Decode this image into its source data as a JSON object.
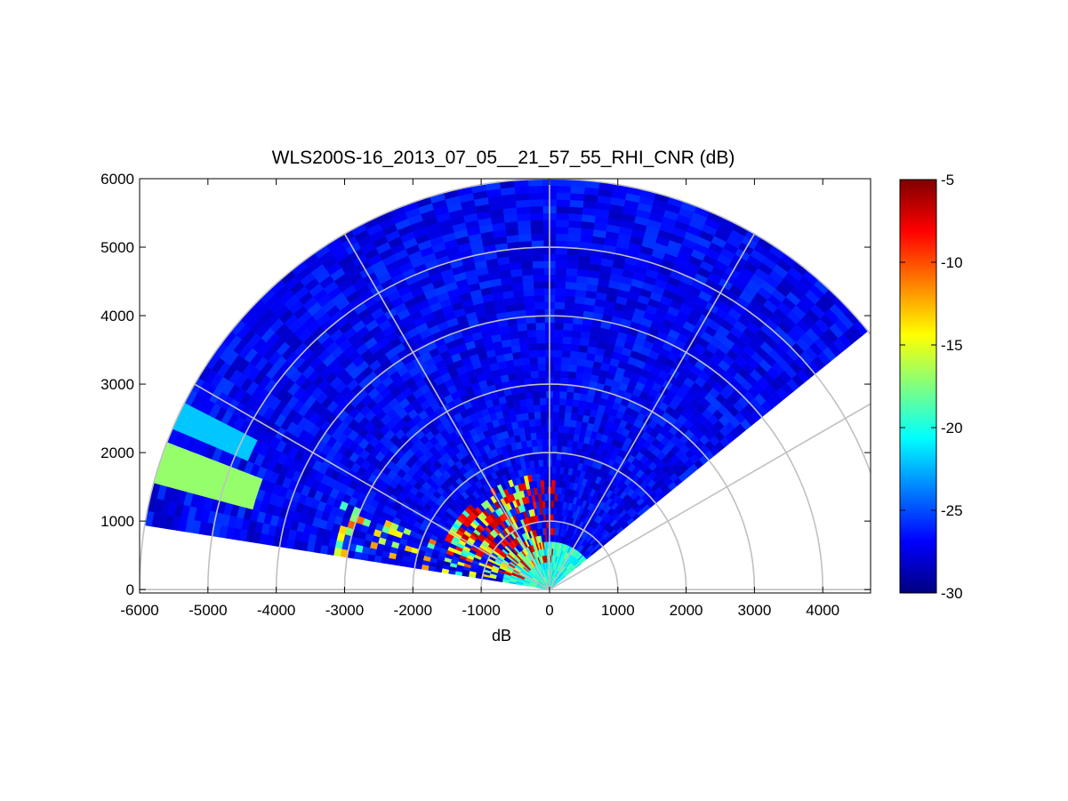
{
  "chart_data": {
    "type": "heatmap",
    "subtype": "polar RHI sector scan",
    "title": "WLS200S-16_2013_07_05__21_57_55_RHI_CNR (dB)",
    "xlabel": "dB",
    "ylabel": "",
    "xlim": [
      -6000,
      4700
    ],
    "ylim": [
      -50,
      6000
    ],
    "x_ticks": [
      -6000,
      -5000,
      -4000,
      -3000,
      -2000,
      -1000,
      0,
      1000,
      2000,
      3000,
      4000
    ],
    "y_ticks": [
      0,
      1000,
      2000,
      3000,
      4000,
      5000,
      6000
    ],
    "range_rings": [
      1000,
      2000,
      3000,
      4000,
      5000,
      6000
    ],
    "spokes_deg": [
      0,
      30,
      60,
      90,
      120,
      150,
      180
    ],
    "sector_elevation_deg": [
      7,
      143
    ],
    "max_range": 6000,
    "grid": true,
    "colorbar": {
      "colormap": "jet",
      "range": [
        -30,
        -5
      ],
      "ticks": [
        -30,
        -25,
        -20,
        -15,
        -10,
        -5
      ],
      "placement": "right"
    },
    "data_summary": {
      "background_cnr_db": -27,
      "near_field_cnr_db": [
        -22,
        -18
      ],
      "strong_return_cnr_db": -6,
      "strong_return_range_m": [
        400,
        1700
      ],
      "strong_return_elevation_deg": [
        100,
        160
      ],
      "elevated_band_elevation_deg": [
        8,
        30
      ]
    }
  }
}
